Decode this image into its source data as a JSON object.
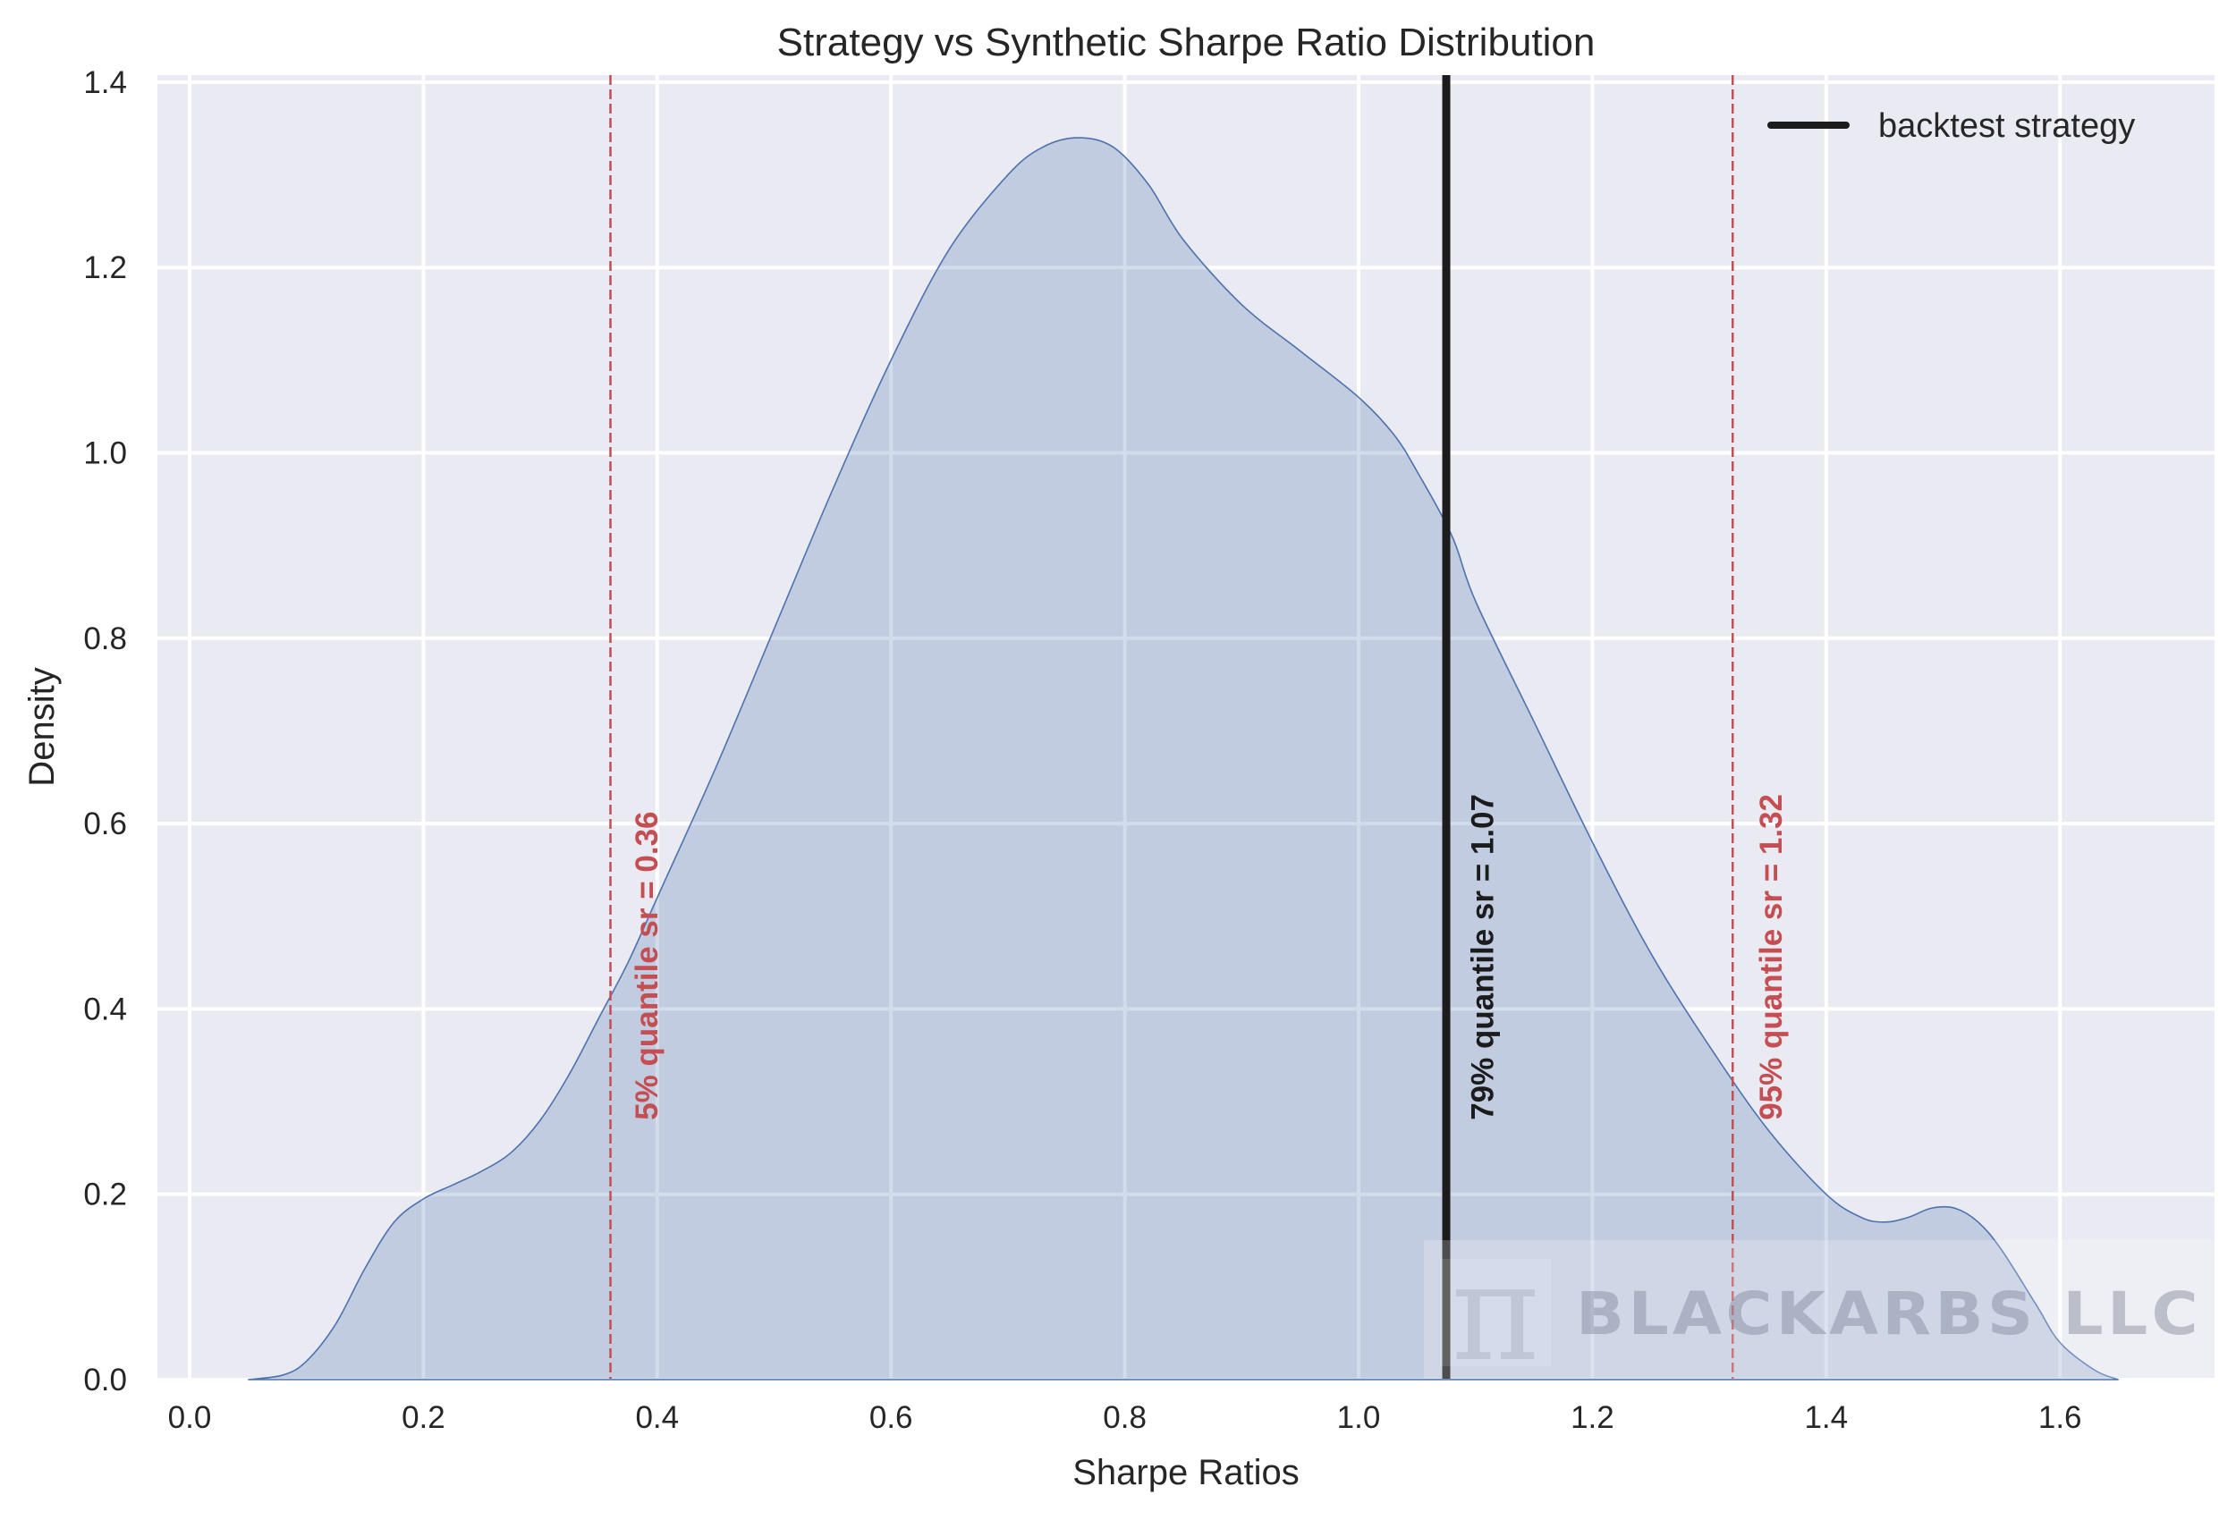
{
  "chart_data": {
    "type": "area",
    "title": "Strategy vs Synthetic Sharpe Ratio Distribution",
    "xlabel": "Sharpe Ratios",
    "ylabel": "Density",
    "xlim": [
      -0.03,
      1.73
    ],
    "ylim": [
      0.0,
      1.41
    ],
    "xticks": [
      0.0,
      0.2,
      0.4,
      0.6,
      0.8,
      1.0,
      1.2,
      1.4,
      1.6
    ],
    "xtick_labels": [
      "0.0",
      "0.2",
      "0.4",
      "0.6",
      "0.8",
      "1.0",
      "1.2",
      "1.4",
      "1.6"
    ],
    "yticks": [
      0.0,
      0.2,
      0.4,
      0.6,
      0.8,
      1.0,
      1.2,
      1.4
    ],
    "ytick_labels": [
      "0.0",
      "0.2",
      "0.4",
      "0.6",
      "0.8",
      "1.0",
      "1.2",
      "1.4"
    ],
    "grid": true,
    "legend_position": "upper right",
    "series": [
      {
        "name": "synthetic sharpe ratio KDE",
        "kind": "kde-filled",
        "color": "#4C72B0",
        "x": [
          0.05,
          0.08,
          0.1,
          0.125,
          0.15,
          0.175,
          0.2,
          0.225,
          0.25,
          0.275,
          0.3,
          0.325,
          0.35,
          0.375,
          0.4,
          0.45,
          0.5,
          0.55,
          0.6,
          0.65,
          0.7,
          0.73,
          0.76,
          0.79,
          0.82,
          0.85,
          0.9,
          0.95,
          1.0,
          1.03,
          1.05,
          1.08,
          1.1,
          1.15,
          1.2,
          1.25,
          1.3,
          1.35,
          1.4,
          1.43,
          1.45,
          1.47,
          1.49,
          1.51,
          1.53,
          1.55,
          1.58,
          1.6,
          1.63,
          1.65
        ],
        "y": [
          0.0,
          0.005,
          0.02,
          0.06,
          0.12,
          0.17,
          0.195,
          0.21,
          0.225,
          0.245,
          0.28,
          0.33,
          0.39,
          0.45,
          0.52,
          0.66,
          0.81,
          0.96,
          1.1,
          1.22,
          1.3,
          1.33,
          1.34,
          1.33,
          1.29,
          1.23,
          1.16,
          1.11,
          1.06,
          1.02,
          0.98,
          0.91,
          0.84,
          0.71,
          0.58,
          0.46,
          0.36,
          0.27,
          0.2,
          0.175,
          0.17,
          0.175,
          0.185,
          0.185,
          0.17,
          0.14,
          0.08,
          0.04,
          0.01,
          0.0
        ]
      }
    ],
    "vlines": [
      {
        "x": 0.36,
        "style": "dashed",
        "color": "#C44E52",
        "label": "5% quantile sr = 0.36",
        "label_x": 0.4,
        "label_y": 0.28
      },
      {
        "x": 1.075,
        "style": "solid",
        "color": "#1C1C1C",
        "label": "79% quantile sr = 1.07",
        "label_x": 1.115,
        "label_y": 0.28,
        "legend": "backtest strategy"
      },
      {
        "x": 1.32,
        "style": "dashed",
        "color": "#C44E52",
        "label": "95% quantile sr = 1.32",
        "label_x": 1.362,
        "label_y": 0.28
      }
    ],
    "annotations": [
      "5% quantile sr = 0.36",
      "79% quantile sr = 1.07",
      "95% quantile sr = 1.32"
    ],
    "legend": [
      {
        "label": "backtest strategy",
        "color": "#1C1C1C",
        "style": "solid"
      }
    ]
  },
  "watermark": {
    "symbol": "π",
    "text": "BLACKARBS LLC"
  },
  "colors": {
    "plot_background": "#EAEAF2",
    "grid": "#FFFFFF",
    "kde_line": "#4C72B0",
    "kde_fill": "#C3CBE2",
    "quantile_red": "#C44E52",
    "strategy_black": "#1C1C1C"
  }
}
